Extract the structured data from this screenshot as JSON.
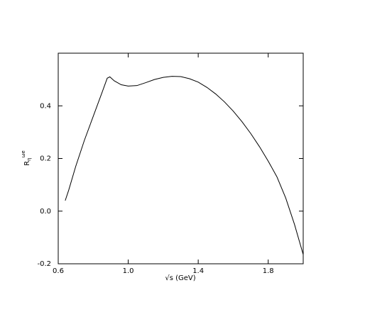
{
  "chart_data": {
    "type": "line",
    "xlabel": "√s (GeV)",
    "ylabel": {
      "main": "R",
      "sub": "η",
      "sup": "ωe"
    },
    "xlim": [
      0.6,
      2.0
    ],
    "ylim": [
      -0.2,
      0.6
    ],
    "xticks": [
      0.6,
      {
        "value": 1,
        "label": "1.0"
      },
      1.4,
      1.8
    ],
    "yticks": [
      -0.2,
      {
        "value": 0,
        "label": "0.0"
      },
      0.2,
      0.4
    ],
    "grid": false,
    "x": [
      0.64,
      0.66,
      0.7,
      0.75,
      0.8,
      0.85,
      0.88,
      0.895,
      0.92,
      0.96,
      1.0,
      1.05,
      1.1,
      1.15,
      1.2,
      1.25,
      1.3,
      1.35,
      1.4,
      1.45,
      1.5,
      1.55,
      1.6,
      1.65,
      1.7,
      1.75,
      1.8,
      1.85,
      1.9,
      1.95,
      2.0
    ],
    "series": [
      {
        "color": "#000000",
        "values": [
          0.04,
          0.08,
          0.17,
          0.27,
          0.36,
          0.45,
          0.505,
          0.51,
          0.495,
          0.48,
          0.475,
          0.477,
          0.488,
          0.5,
          0.508,
          0.512,
          0.511,
          0.503,
          0.49,
          0.47,
          0.445,
          0.415,
          0.38,
          0.34,
          0.295,
          0.245,
          0.19,
          0.13,
          0.05,
          -0.05,
          -0.165
        ]
      }
    ]
  }
}
